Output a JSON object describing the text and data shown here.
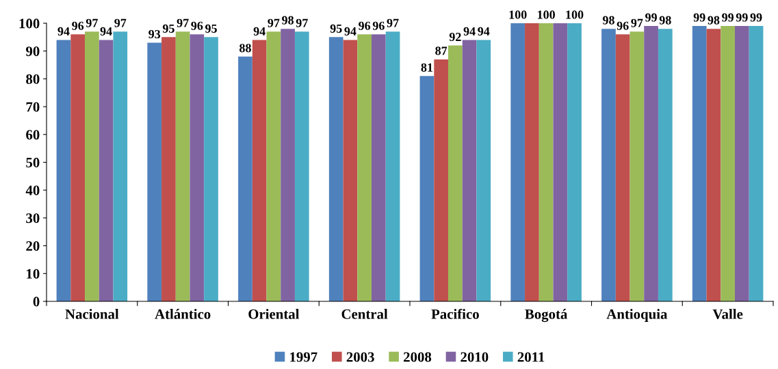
{
  "chart_data": {
    "type": "bar",
    "categories": [
      "Nacional",
      "Atlántico",
      "Oriental",
      "Central",
      "Pacifico",
      "Bogotá",
      "Antioquia",
      "Valle"
    ],
    "series": [
      {
        "name": "1997",
        "color": "#4f81bd",
        "values": [
          94,
          93,
          88,
          95,
          81,
          100,
          98,
          99
        ],
        "value_labels": [
          "94",
          "93",
          "88",
          "95",
          "81",
          "100",
          "98",
          "99"
        ]
      },
      {
        "name": "2003",
        "color": "#c0504d",
        "values": [
          96,
          95,
          94,
          94,
          87,
          100,
          96,
          98
        ],
        "value_labels": [
          "96",
          "95",
          "94",
          "94",
          "87",
          null,
          "96",
          "98"
        ]
      },
      {
        "name": "2008",
        "color": "#9bbb59",
        "values": [
          97,
          97,
          97,
          96,
          92,
          100,
          97,
          99
        ],
        "value_labels": [
          "97",
          "97",
          "97",
          "96",
          "92",
          "100",
          "97",
          "99"
        ]
      },
      {
        "name": "2010",
        "color": "#8064a2",
        "values": [
          94,
          96,
          98,
          96,
          94,
          100,
          99,
          99
        ],
        "value_labels": [
          "94",
          "96",
          "98",
          "96",
          "94",
          null,
          "99",
          "99"
        ]
      },
      {
        "name": "2011",
        "color": "#4bacc6",
        "values": [
          97,
          95,
          97,
          97,
          94,
          100,
          98,
          99
        ],
        "value_labels": [
          "97",
          "95",
          "97",
          "97",
          "94",
          "100",
          "98",
          "99"
        ]
      }
    ],
    "ylim": [
      0,
      100
    ],
    "yticks": [
      0,
      10,
      20,
      30,
      40,
      50,
      60,
      70,
      80,
      90,
      100
    ],
    "grid": false,
    "legend": "bottom"
  }
}
